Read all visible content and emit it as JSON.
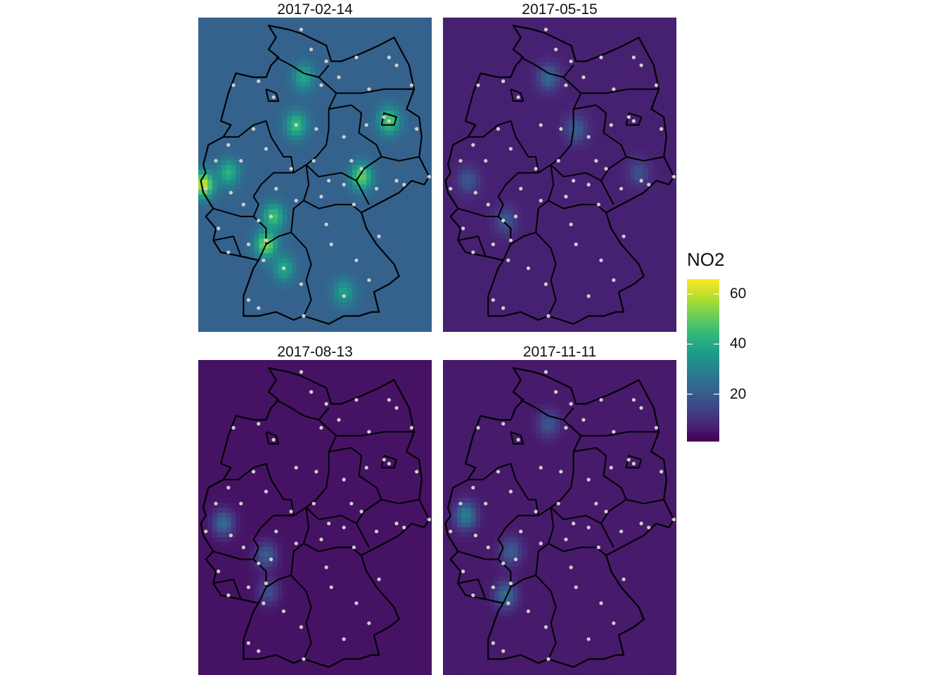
{
  "panels": [
    {
      "date": "2017-02-14",
      "level": 0.62,
      "hotspots": [
        {
          "lon": 6.0,
          "lat": 50.9,
          "v": 66
        },
        {
          "lon": 7.0,
          "lat": 51.2,
          "v": 45
        },
        {
          "lon": 8.5,
          "lat": 49.4,
          "v": 58
        },
        {
          "lon": 8.8,
          "lat": 50.1,
          "v": 50
        },
        {
          "lon": 12.3,
          "lat": 51.1,
          "v": 55
        },
        {
          "lon": 13.4,
          "lat": 52.5,
          "v": 52
        },
        {
          "lon": 9.7,
          "lat": 52.4,
          "v": 48
        },
        {
          "lon": 10.0,
          "lat": 53.6,
          "v": 42
        },
        {
          "lon": 11.6,
          "lat": 48.2,
          "v": 40
        },
        {
          "lon": 9.2,
          "lat": 48.8,
          "v": 42
        }
      ]
    },
    {
      "date": "2017-05-15",
      "level": 0.18,
      "hotspots": [
        {
          "lon": 10.0,
          "lat": 53.6,
          "v": 25
        },
        {
          "lon": 11.1,
          "lat": 52.3,
          "v": 22
        },
        {
          "lon": 6.8,
          "lat": 51.0,
          "v": 20
        },
        {
          "lon": 8.3,
          "lat": 50.0,
          "v": 20
        },
        {
          "lon": 13.6,
          "lat": 51.2,
          "v": 18
        }
      ]
    },
    {
      "date": "2017-08-13",
      "level": 0.1,
      "hotspots": [
        {
          "lon": 6.8,
          "lat": 51.0,
          "v": 26
        },
        {
          "lon": 8.5,
          "lat": 50.2,
          "v": 22
        },
        {
          "lon": 8.6,
          "lat": 49.3,
          "v": 18
        }
      ]
    },
    {
      "date": "2017-11-11",
      "level": 0.14,
      "hotspots": [
        {
          "lon": 6.7,
          "lat": 51.2,
          "v": 32
        },
        {
          "lon": 8.3,
          "lat": 49.2,
          "v": 26
        },
        {
          "lon": 8.5,
          "lat": 50.3,
          "v": 22
        },
        {
          "lon": 10.0,
          "lat": 53.5,
          "v": 20
        }
      ]
    }
  ],
  "legend": {
    "title": "NO2",
    "min": 1,
    "max": 66,
    "ticks": [
      {
        "value": 20,
        "label": "20"
      },
      {
        "value": 40,
        "label": "40"
      },
      {
        "value": 60,
        "label": "60"
      }
    ]
  },
  "extent": {
    "lon": [
      5.8,
      15.1
    ],
    "lat": [
      47.2,
      55.1
    ]
  },
  "stations": [
    [
      9.9,
      54.8
    ],
    [
      10.3,
      54.3
    ],
    [
      10.9,
      54.0
    ],
    [
      12.1,
      54.1
    ],
    [
      13.4,
      54.1
    ],
    [
      13.7,
      53.9
    ],
    [
      11.4,
      53.6
    ],
    [
      10.7,
      53.4
    ],
    [
      12.6,
      53.3
    ],
    [
      14.3,
      53.4
    ],
    [
      8.2,
      53.5
    ],
    [
      8.8,
      53.1
    ],
    [
      7.2,
      53.4
    ],
    [
      9.7,
      52.4
    ],
    [
      10.5,
      52.3
    ],
    [
      11.6,
      52.1
    ],
    [
      12.5,
      52.4
    ],
    [
      13.4,
      52.5
    ],
    [
      13.2,
      52.6
    ],
    [
      14.5,
      52.3
    ],
    [
      8.0,
      52.3
    ],
    [
      7.0,
      51.9
    ],
    [
      6.5,
      51.5
    ],
    [
      7.5,
      51.5
    ],
    [
      8.5,
      51.8
    ],
    [
      9.5,
      51.3
    ],
    [
      10.4,
      51.5
    ],
    [
      11.9,
      51.5
    ],
    [
      12.3,
      51.3
    ],
    [
      13.7,
      51.0
    ],
    [
      12.9,
      50.8
    ],
    [
      15.0,
      51.1
    ],
    [
      11.0,
      51.0
    ],
    [
      11.6,
      50.9
    ],
    [
      10.7,
      50.6
    ],
    [
      9.7,
      50.5
    ],
    [
      8.7,
      50.1
    ],
    [
      8.2,
      50.0
    ],
    [
      8.9,
      50.8
    ],
    [
      6.1,
      50.8
    ],
    [
      7.1,
      50.7
    ],
    [
      7.6,
      50.4
    ],
    [
      6.6,
      49.8
    ],
    [
      7.0,
      49.2
    ],
    [
      7.8,
      49.4
    ],
    [
      8.5,
      49.5
    ],
    [
      8.4,
      49.0
    ],
    [
      9.2,
      48.8
    ],
    [
      9.9,
      48.4
    ],
    [
      11.6,
      48.1
    ],
    [
      12.1,
      49.0
    ],
    [
      11.1,
      49.4
    ],
    [
      10.9,
      49.9
    ],
    [
      12.6,
      48.5
    ],
    [
      8.2,
      47.8
    ],
    [
      7.8,
      48.0
    ],
    [
      10.0,
      47.6
    ],
    [
      13.0,
      49.6
    ],
    [
      12.0,
      50.4
    ],
    [
      14.0,
      50.9
    ]
  ]
}
